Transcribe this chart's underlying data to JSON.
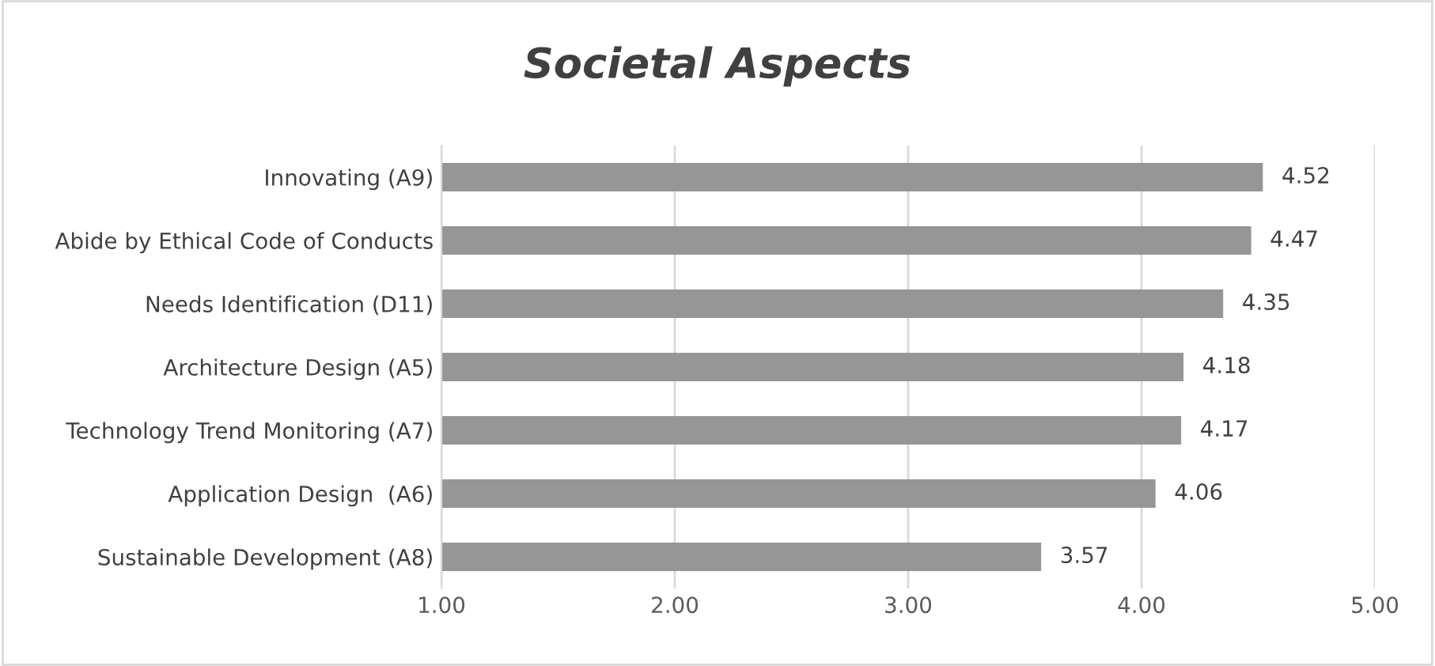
{
  "chart_data": {
    "type": "bar",
    "orientation": "horizontal",
    "title": "Societal Aspects",
    "categories": [
      "Innovating (A9)",
      "Abide by Ethical Code of Conducts",
      "Needs Identification (D11)",
      "Architecture Design (A5)",
      "Technology Trend Monitoring (A7)",
      "Application Design  (A6)",
      "Sustainable Development (A8)"
    ],
    "values": [
      4.52,
      4.47,
      4.35,
      4.18,
      4.17,
      4.06,
      3.57
    ],
    "color": "#969696",
    "xlim": [
      1,
      5
    ],
    "xticks": [
      {
        "value": 1,
        "label": "1.00"
      },
      {
        "value": 2,
        "label": "2.00"
      },
      {
        "value": 3,
        "label": "3.00"
      },
      {
        "value": 4,
        "label": "4.00"
      },
      {
        "value": 5,
        "label": "5.00"
      }
    ],
    "grid": "x",
    "data_labels": true
  }
}
